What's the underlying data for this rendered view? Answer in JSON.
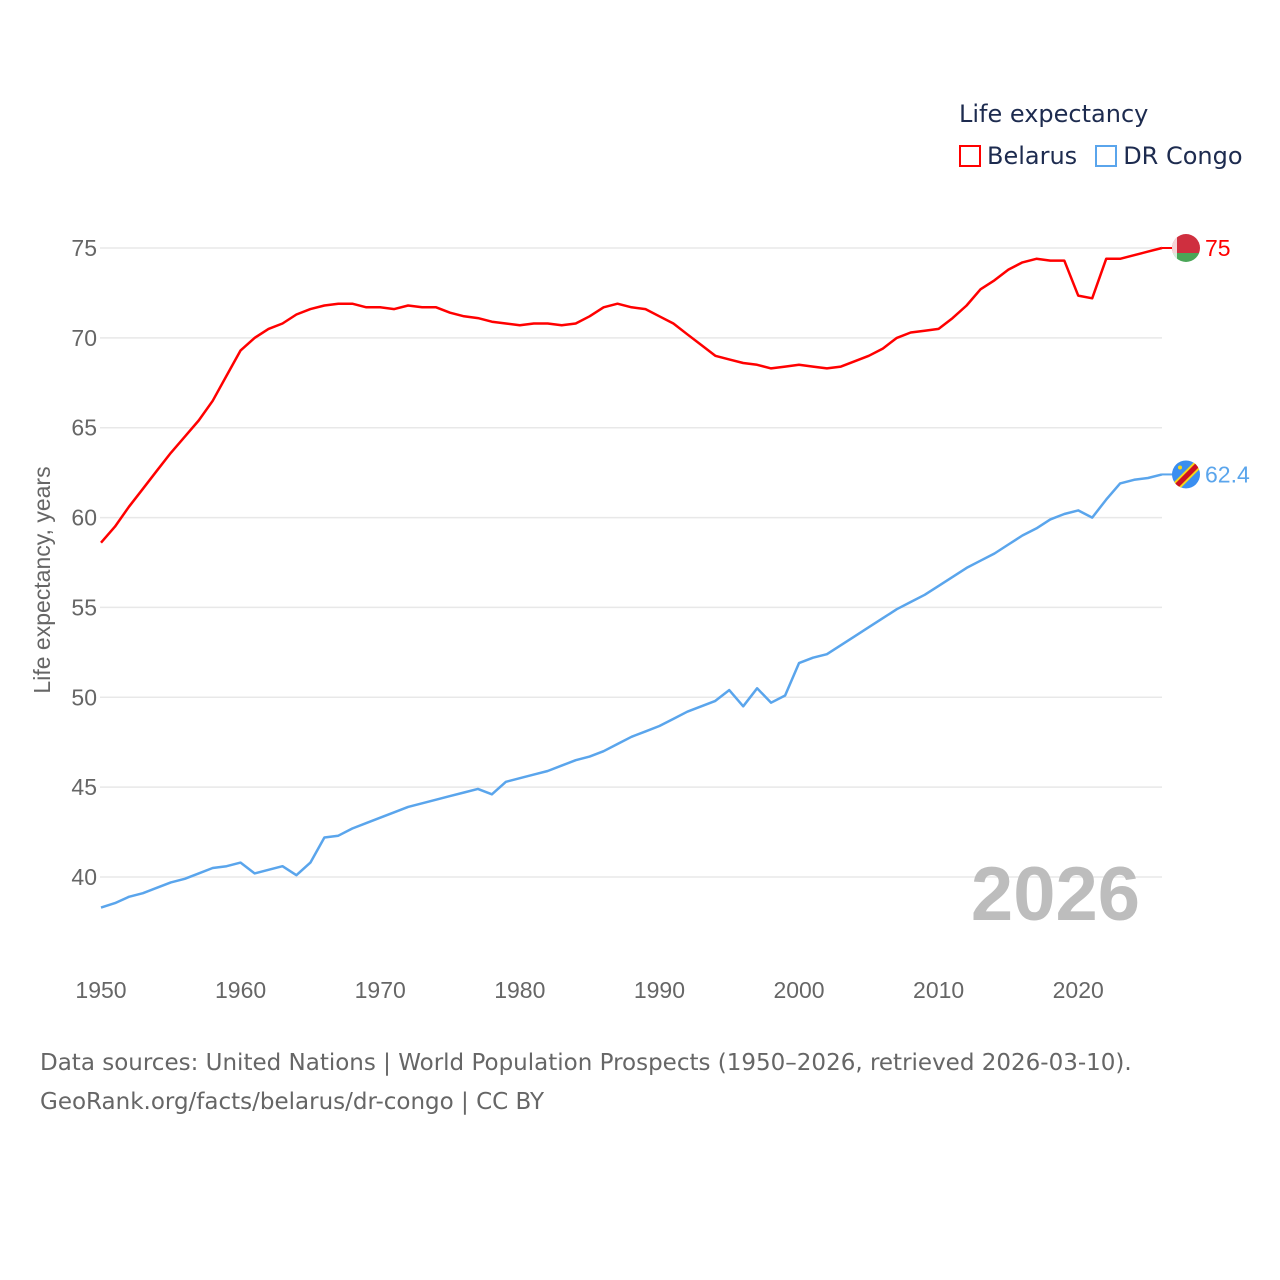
{
  "chart_data": {
    "type": "line",
    "title": "Life expectancy",
    "xlabel": "",
    "ylabel": "Life expectancy, years",
    "ylim": [
      40,
      75
    ],
    "yticks": [
      40,
      45,
      50,
      55,
      60,
      65,
      70,
      75
    ],
    "xlim": [
      1950,
      2026
    ],
    "xticks": [
      1950,
      1960,
      1970,
      1980,
      1990,
      2000,
      2010,
      2020
    ],
    "grid": true,
    "legend_position": "top-right",
    "current_year_label": "2026",
    "x": [
      1950,
      1951,
      1952,
      1953,
      1954,
      1955,
      1956,
      1957,
      1958,
      1959,
      1960,
      1961,
      1962,
      1963,
      1964,
      1965,
      1966,
      1967,
      1968,
      1969,
      1970,
      1971,
      1972,
      1973,
      1974,
      1975,
      1976,
      1977,
      1978,
      1979,
      1980,
      1981,
      1982,
      1983,
      1984,
      1985,
      1986,
      1987,
      1988,
      1989,
      1990,
      1991,
      1992,
      1993,
      1994,
      1995,
      1996,
      1997,
      1998,
      1999,
      2000,
      2001,
      2002,
      2003,
      2004,
      2005,
      2006,
      2007,
      2008,
      2009,
      2010,
      2011,
      2012,
      2013,
      2014,
      2015,
      2016,
      2017,
      2018,
      2019,
      2020,
      2021,
      2022,
      2023,
      2024,
      2025,
      2026
    ],
    "series": [
      {
        "name": "Belarus",
        "color": "#ff0000",
        "end_label": "75",
        "flag": "belarus-flag",
        "values": [
          58.6,
          59.5,
          60.6,
          61.6,
          62.6,
          63.6,
          64.5,
          65.4,
          66.5,
          67.9,
          69.3,
          70.0,
          70.5,
          70.8,
          71.3,
          71.6,
          71.8,
          71.9,
          71.9,
          71.7,
          71.7,
          71.6,
          71.8,
          71.7,
          71.7,
          71.4,
          71.2,
          71.1,
          70.9,
          70.8,
          70.7,
          70.8,
          70.8,
          70.7,
          70.8,
          71.2,
          71.7,
          71.9,
          71.7,
          71.6,
          71.2,
          70.8,
          70.2,
          69.6,
          69.0,
          68.8,
          68.6,
          68.5,
          68.3,
          68.4,
          68.5,
          68.4,
          68.3,
          68.4,
          68.7,
          69.0,
          69.4,
          70.0,
          70.3,
          70.4,
          70.5,
          71.1,
          71.8,
          72.7,
          73.2,
          73.8,
          74.2,
          74.4,
          74.3,
          74.3,
          72.35,
          72.2,
          74.4,
          74.4,
          74.6,
          74.8,
          75.0
        ]
      },
      {
        "name": "DR Congo",
        "color": "#5aa5ec",
        "end_label": "62.4",
        "flag": "dr-congo-flag",
        "values": [
          38.3,
          38.55,
          38.9,
          39.1,
          39.4,
          39.7,
          39.9,
          40.2,
          40.5,
          40.6,
          40.8,
          40.2,
          40.4,
          40.6,
          40.1,
          40.8,
          42.2,
          42.3,
          42.7,
          43.0,
          43.3,
          43.6,
          43.9,
          44.1,
          44.3,
          44.5,
          44.7,
          44.9,
          44.6,
          45.3,
          45.5,
          45.7,
          45.9,
          46.2,
          46.5,
          46.7,
          47.0,
          47.4,
          47.8,
          48.1,
          48.4,
          48.8,
          49.2,
          49.5,
          49.8,
          50.4,
          49.5,
          50.5,
          49.7,
          50.1,
          51.9,
          52.2,
          52.4,
          52.9,
          53.4,
          53.9,
          54.4,
          54.9,
          55.3,
          55.7,
          56.2,
          56.7,
          57.2,
          57.6,
          58.0,
          58.5,
          59.0,
          59.4,
          59.9,
          60.2,
          60.4,
          60.0,
          61.0,
          61.9,
          62.1,
          62.2,
          62.4
        ]
      }
    ]
  },
  "source": {
    "line1": "Data sources: United Nations | World Population Prospects (1950–2026, retrieved 2026-03-10).",
    "line2": "GeoRank.org/facts/belarus/dr-congo | CC BY"
  }
}
